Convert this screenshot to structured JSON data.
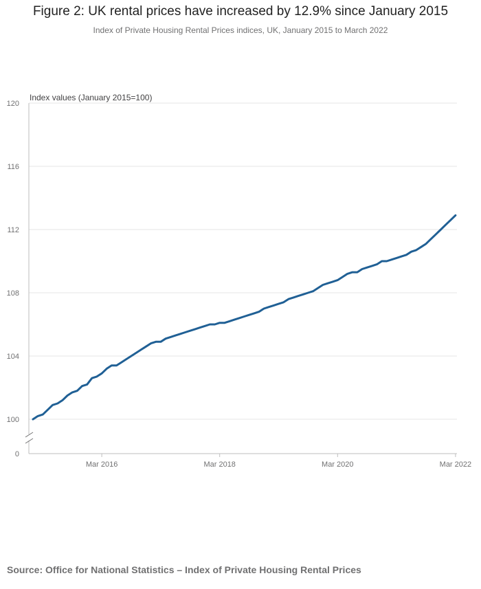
{
  "title": "Figure 2: UK rental prices have increased by 12.9% since January 2015",
  "subtitle": "Index of Private Housing Rental Prices indices, UK, January 2015 to March 2022",
  "source": "Source: Office for National Statistics – Index of Private Housing Rental Prices",
  "colors": {
    "line": "#206095",
    "grid": "#e6e6e6",
    "axis": "#bebebe",
    "text": "#707071"
  },
  "chart_data": {
    "type": "line",
    "title": "Figure 2: UK rental prices have increased by 12.9% since January 2015",
    "subtitle": "Index of Private Housing Rental Prices indices, UK, January 2015 to March 2022",
    "ylabel": "Index values (January 2015=100)",
    "xlabel": "",
    "ylim": [
      100,
      120
    ],
    "axis_break": true,
    "y_ticks": [
      "0",
      "100",
      "104",
      "108",
      "112",
      "116",
      "120"
    ],
    "x_ticks": [
      "Mar 2016",
      "Mar 2018",
      "Mar 2020",
      "Mar 2022"
    ],
    "grid": true,
    "x_start": "2015-01",
    "x_end": "2022-03",
    "series": [
      {
        "values": [
          100.0,
          100.2,
          100.3,
          100.6,
          100.9,
          101.0,
          101.2,
          101.5,
          101.7,
          101.8,
          102.1,
          102.2,
          102.6,
          102.7,
          102.9,
          103.2,
          103.4,
          103.4,
          103.6,
          103.8,
          104.0,
          104.2,
          104.4,
          104.6,
          104.8,
          104.9,
          104.9,
          105.1,
          105.2,
          105.3,
          105.4,
          105.5,
          105.6,
          105.7,
          105.8,
          105.9,
          106.0,
          106.0,
          106.1,
          106.1,
          106.2,
          106.3,
          106.4,
          106.5,
          106.6,
          106.7,
          106.8,
          107.0,
          107.1,
          107.2,
          107.3,
          107.4,
          107.6,
          107.7,
          107.8,
          107.9,
          108.0,
          108.1,
          108.3,
          108.5,
          108.6,
          108.7,
          108.8,
          109.0,
          109.2,
          109.3,
          109.3,
          109.5,
          109.6,
          109.7,
          109.8,
          110.0,
          110.0,
          110.1,
          110.2,
          110.3,
          110.4,
          110.6,
          110.7,
          110.9,
          111.1,
          111.4,
          111.7,
          112.0,
          112.3,
          112.6,
          112.9
        ]
      }
    ]
  }
}
